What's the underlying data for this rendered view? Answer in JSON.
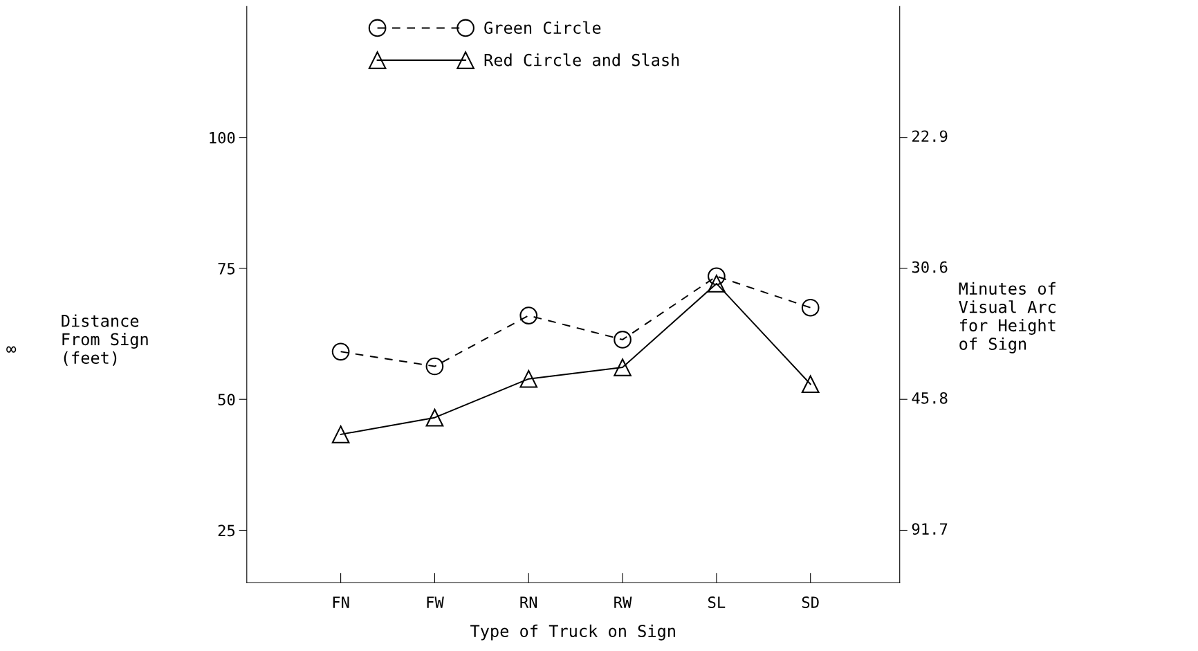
{
  "chart_data": {
    "type": "line",
    "xlabel": "Type of Truck on Sign",
    "ylabel": "Distance\nFrom Sign\n(feet)",
    "y2label": "Minutes of\nVisual Arc\nfor Height\nof Sign",
    "categories": [
      "FN",
      "FW",
      "RN",
      "RW",
      "SL",
      "SD"
    ],
    "series": [
      {
        "name": "Green Circle",
        "color": "#000000",
        "marker": "circle",
        "line_style": "dashed",
        "values": [
          59.1,
          56.3,
          66.0,
          61.4,
          73.5,
          67.5
        ]
      },
      {
        "name": "Red Circle and Slash",
        "color": "#000000",
        "marker": "triangle",
        "line_style": "solid",
        "values": [
          43.3,
          46.5,
          53.9,
          56.1,
          72.1,
          52.9
        ]
      }
    ],
    "ylim": [
      15,
      125
    ],
    "yticks": [
      25,
      50,
      75,
      100
    ],
    "annotations": [
      "∞",
      "91.7",
      "45.8",
      "30.6",
      "22.9"
    ],
    "legend": "top left",
    "grid": false
  }
}
